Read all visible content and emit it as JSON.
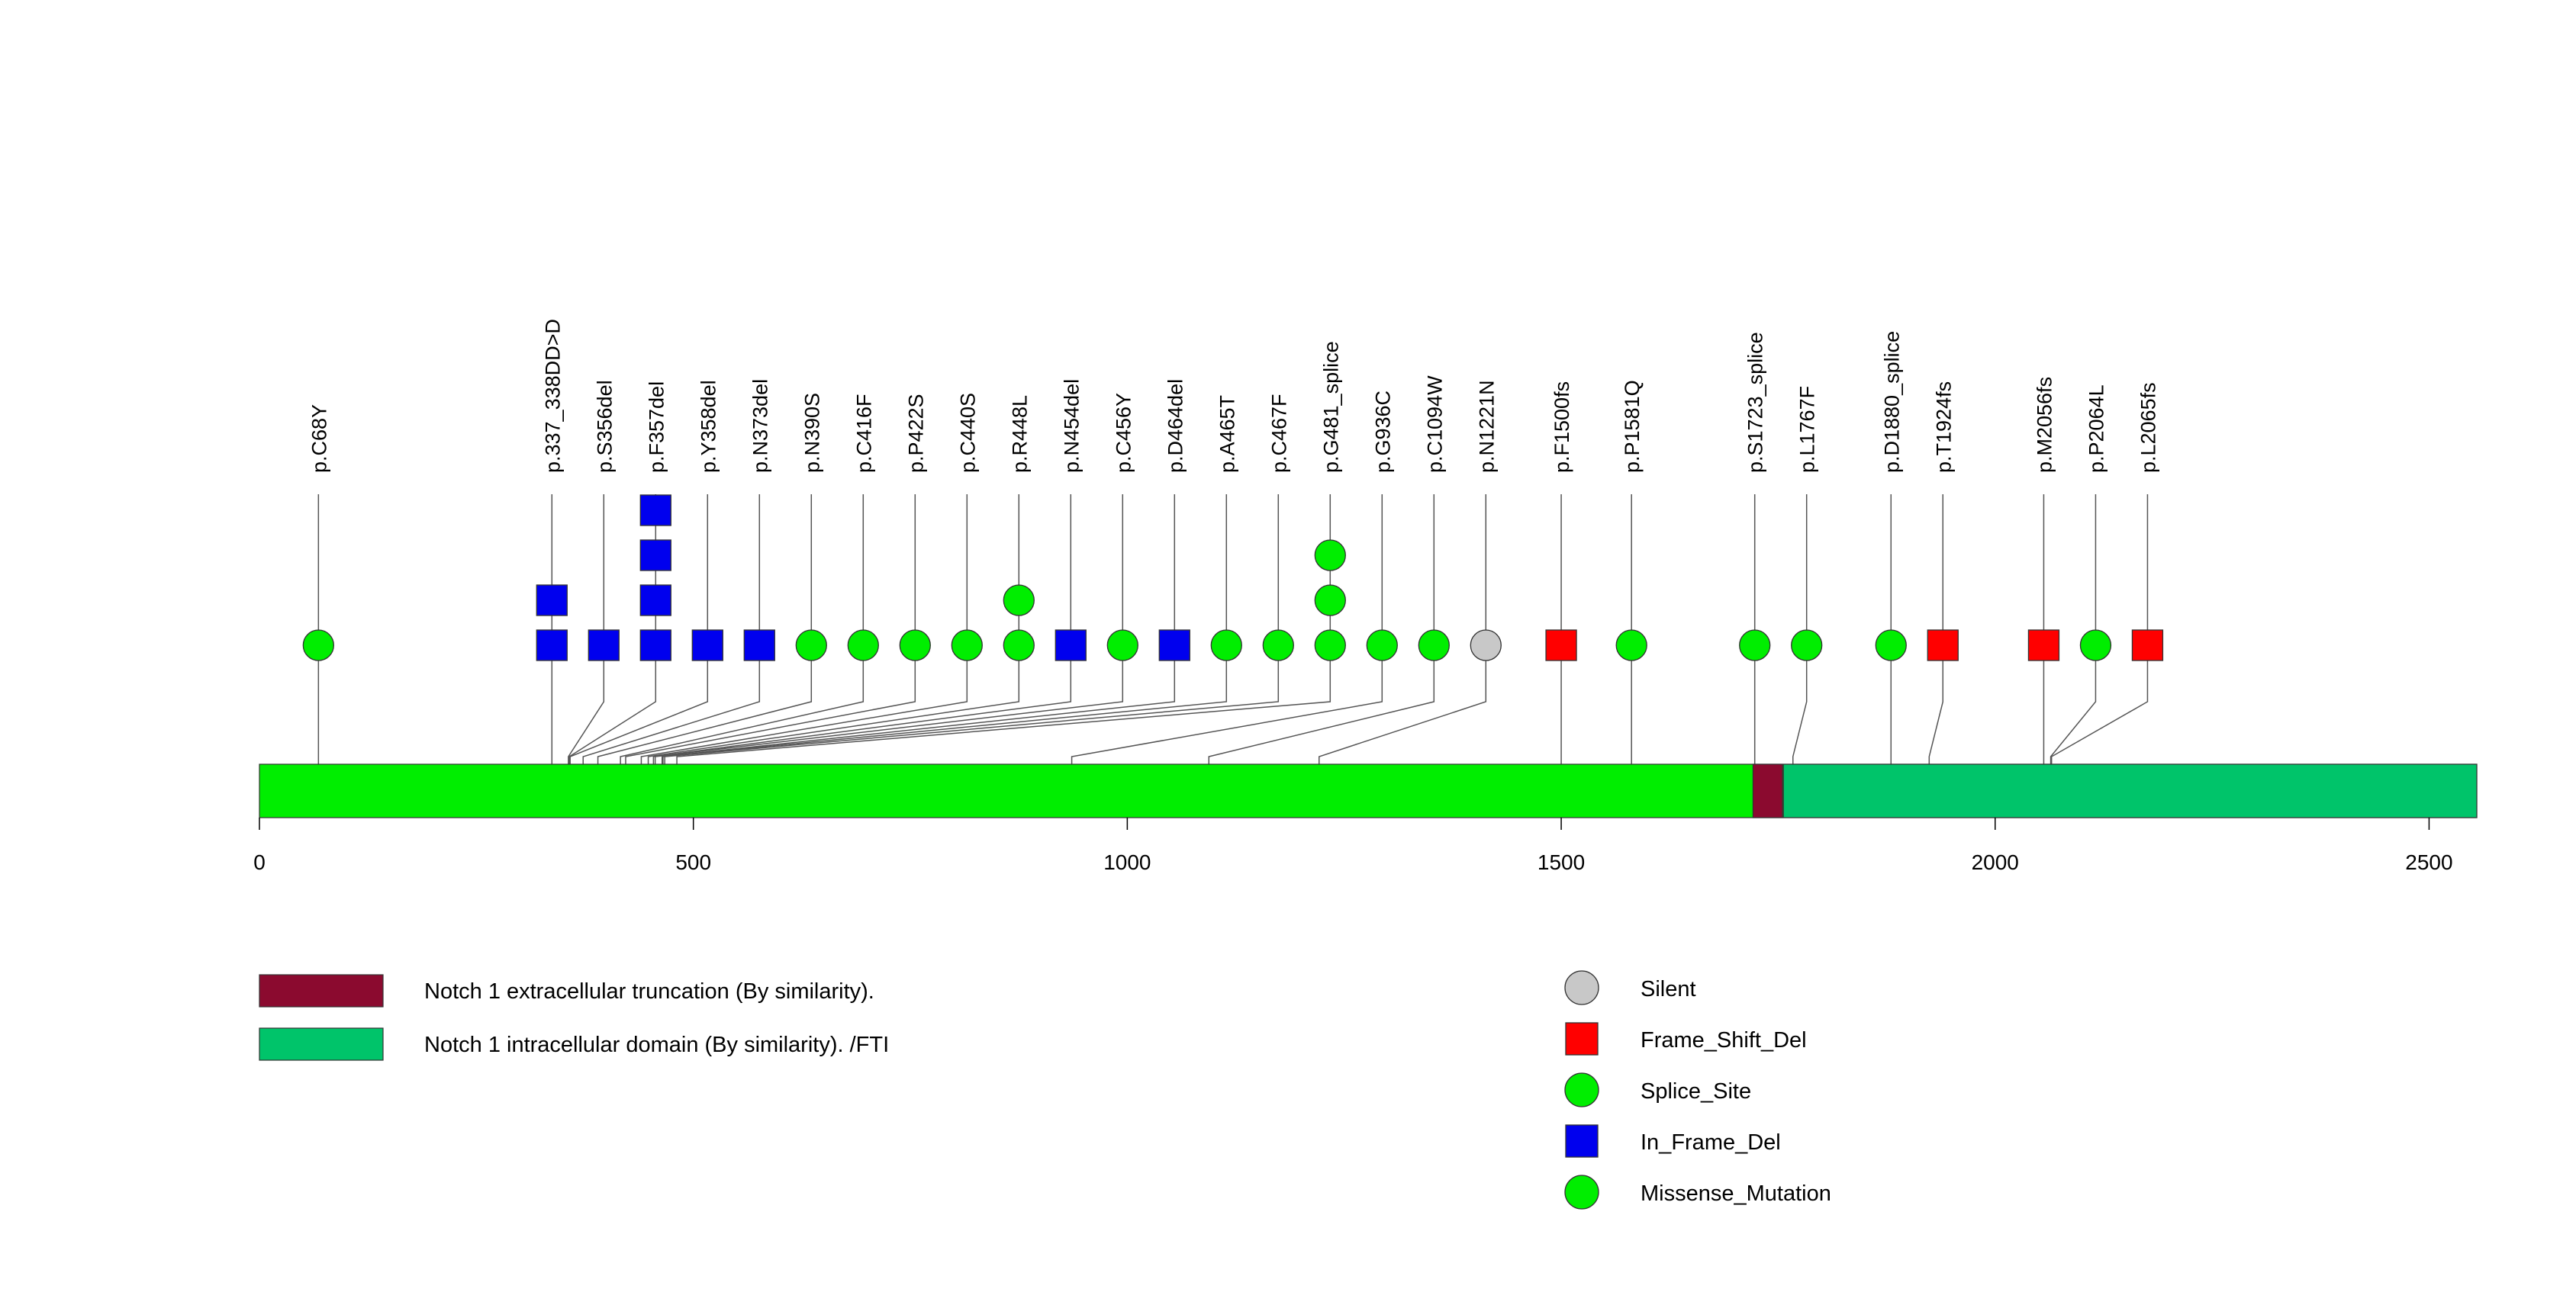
{
  "chart_data": {
    "type": "lollipop",
    "protein_length": 2555,
    "axis": {
      "xlim": [
        0,
        2555
      ],
      "ticks": [
        0,
        500,
        1000,
        1500,
        2000,
        2500
      ]
    },
    "protein_color": "#00ee00",
    "domains": [
      {
        "name": "Notch 1 extracellular truncation (By similarity).",
        "start": 1721,
        "end": 1755,
        "color": "#8b0a2f"
      },
      {
        "name": "Notch 1 intracellular domain (By similarity). /FTI",
        "start": 1756,
        "end": 2555,
        "color": "#00c46a"
      }
    ],
    "mutation_types": {
      "Silent": {
        "shape": "circle",
        "color": "#c8c8c8"
      },
      "Frame_Shift_Del": {
        "shape": "square",
        "color": "#ff0000"
      },
      "Splice_Site": {
        "shape": "circle",
        "color": "#00ee00"
      },
      "In_Frame_Del": {
        "shape": "square",
        "color": "#0000ee"
      },
      "Missense_Mutation": {
        "shape": "circle",
        "color": "#00ee00"
      }
    },
    "legend_types": [
      "Silent",
      "Frame_Shift_Del",
      "Splice_Site",
      "In_Frame_Del",
      "Missense_Mutation"
    ],
    "mutations": [
      {
        "label": "p.C68Y",
        "position": 68,
        "type": "Missense_Mutation",
        "count": 1
      },
      {
        "label": "p.337_338DD>D",
        "position": 337,
        "type": "In_Frame_Del",
        "count": 2
      },
      {
        "label": "p.S356del",
        "position": 356,
        "type": "In_Frame_Del",
        "count": 1
      },
      {
        "label": "p.F357del",
        "position": 357,
        "type": "In_Frame_Del",
        "count": 4
      },
      {
        "label": "p.Y358del",
        "position": 358,
        "type": "In_Frame_Del",
        "count": 1
      },
      {
        "label": "p.N373del",
        "position": 373,
        "type": "In_Frame_Del",
        "count": 1
      },
      {
        "label": "p.N390S",
        "position": 390,
        "type": "Missense_Mutation",
        "count": 1
      },
      {
        "label": "p.C416F",
        "position": 416,
        "type": "Missense_Mutation",
        "count": 1
      },
      {
        "label": "p.P422S",
        "position": 422,
        "type": "Missense_Mutation",
        "count": 1
      },
      {
        "label": "p.C440S",
        "position": 440,
        "type": "Missense_Mutation",
        "count": 1
      },
      {
        "label": "p.R448L",
        "position": 448,
        "type": "Missense_Mutation",
        "count": 2
      },
      {
        "label": "p.N454del",
        "position": 454,
        "type": "In_Frame_Del",
        "count": 1
      },
      {
        "label": "p.C456Y",
        "position": 456,
        "type": "Missense_Mutation",
        "count": 1
      },
      {
        "label": "p.D464del",
        "position": 464,
        "type": "In_Frame_Del",
        "count": 1
      },
      {
        "label": "p.A465T",
        "position": 465,
        "type": "Missense_Mutation",
        "count": 1
      },
      {
        "label": "p.C467F",
        "position": 467,
        "type": "Missense_Mutation",
        "count": 1
      },
      {
        "label": "p.G481_splice",
        "position": 481,
        "type": "Splice_Site",
        "count": 3
      },
      {
        "label": "p.G936C",
        "position": 936,
        "type": "Missense_Mutation",
        "count": 1
      },
      {
        "label": "p.C1094W",
        "position": 1094,
        "type": "Missense_Mutation",
        "count": 1
      },
      {
        "label": "p.N1221N",
        "position": 1221,
        "type": "Silent",
        "count": 1
      },
      {
        "label": "p.F1500fs",
        "position": 1500,
        "type": "Frame_Shift_Del",
        "count": 1
      },
      {
        "label": "p.P1581Q",
        "position": 1581,
        "type": "Missense_Mutation",
        "count": 1
      },
      {
        "label": "p.S1723_splice",
        "position": 1723,
        "type": "Splice_Site",
        "count": 1
      },
      {
        "label": "p.L1767F",
        "position": 1767,
        "type": "Missense_Mutation",
        "count": 1
      },
      {
        "label": "p.D1880_splice",
        "position": 1880,
        "type": "Splice_Site",
        "count": 1
      },
      {
        "label": "p.T1924fs",
        "position": 1924,
        "type": "Frame_Shift_Del",
        "count": 1
      },
      {
        "label": "p.M2056fs",
        "position": 2056,
        "type": "Frame_Shift_Del",
        "count": 1
      },
      {
        "label": "p.P2064L",
        "position": 2064,
        "type": "Missense_Mutation",
        "count": 1
      },
      {
        "label": "p.L2065fs",
        "position": 2065,
        "type": "Frame_Shift_Del",
        "count": 1
      }
    ]
  }
}
